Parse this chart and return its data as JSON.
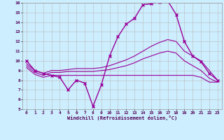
{
  "xlabel": "Windchill (Refroidissement éolien,°C)",
  "bg_color": "#cceeff",
  "line_color": "#990099",
  "grid_color": "#bbbbbb",
  "xlim": [
    -0.5,
    23.5
  ],
  "ylim": [
    5,
    16
  ],
  "yticks": [
    5,
    6,
    7,
    8,
    9,
    10,
    11,
    12,
    13,
    14,
    15,
    16
  ],
  "xticks": [
    0,
    1,
    2,
    3,
    4,
    5,
    6,
    7,
    8,
    9,
    10,
    11,
    12,
    13,
    14,
    15,
    16,
    17,
    18,
    19,
    20,
    21,
    22,
    23
  ],
  "series": [
    {
      "x": [
        0,
        1,
        2,
        3,
        4,
        5,
        6,
        7,
        8,
        9,
        10,
        11,
        12,
        13,
        14,
        15,
        16,
        17,
        18,
        19,
        20,
        21,
        22,
        23
      ],
      "y": [
        10.0,
        9.0,
        8.7,
        8.5,
        8.3,
        7.0,
        8.0,
        7.7,
        5.3,
        7.5,
        10.5,
        12.5,
        13.8,
        14.4,
        15.8,
        15.9,
        16.1,
        16.2,
        14.8,
        12.0,
        10.5,
        9.9,
        8.7,
        8.0
      ],
      "marker": "x",
      "markersize": 2.5,
      "linewidth": 1.0
    },
    {
      "x": [
        0,
        1,
        2,
        3,
        4,
        5,
        6,
        7,
        8,
        9,
        10,
        11,
        12,
        13,
        14,
        15,
        16,
        17,
        18,
        19,
        20,
        21,
        22,
        23
      ],
      "y": [
        9.7,
        9.0,
        8.7,
        9.0,
        9.0,
        9.1,
        9.2,
        9.2,
        9.2,
        9.3,
        9.5,
        9.8,
        10.1,
        10.5,
        11.0,
        11.5,
        11.9,
        12.2,
        12.0,
        11.0,
        10.5,
        10.0,
        9.0,
        8.0
      ],
      "marker": "",
      "markersize": 0,
      "linewidth": 0.8
    },
    {
      "x": [
        0,
        1,
        2,
        3,
        4,
        5,
        6,
        7,
        8,
        9,
        10,
        11,
        12,
        13,
        14,
        15,
        16,
        17,
        18,
        19,
        20,
        21,
        22,
        23
      ],
      "y": [
        9.5,
        8.8,
        8.5,
        8.8,
        8.8,
        8.9,
        8.9,
        8.9,
        8.9,
        9.0,
        9.1,
        9.3,
        9.5,
        9.8,
        10.2,
        10.5,
        10.8,
        11.0,
        10.8,
        10.0,
        9.5,
        9.0,
        8.2,
        7.8
      ],
      "marker": "",
      "markersize": 0,
      "linewidth": 0.8
    },
    {
      "x": [
        0,
        1,
        2,
        3,
        4,
        5,
        6,
        7,
        8,
        9,
        10,
        11,
        12,
        13,
        14,
        15,
        16,
        17,
        18,
        19,
        20,
        21,
        22,
        23
      ],
      "y": [
        9.3,
        8.6,
        8.3,
        8.5,
        8.5,
        8.5,
        8.5,
        8.5,
        8.5,
        8.5,
        8.5,
        8.5,
        8.5,
        8.5,
        8.5,
        8.5,
        8.5,
        8.5,
        8.5,
        8.5,
        8.5,
        8.3,
        7.8,
        7.8
      ],
      "marker": "",
      "markersize": 0,
      "linewidth": 0.8
    }
  ]
}
